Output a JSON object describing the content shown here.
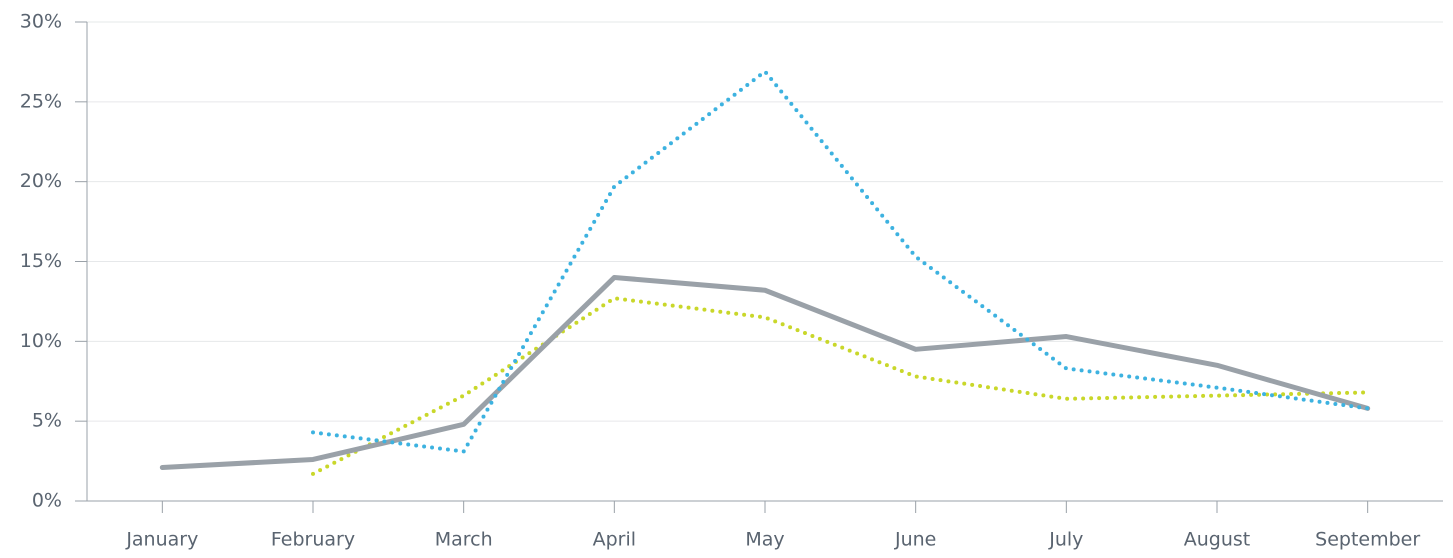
{
  "chart_data": {
    "type": "line",
    "categories": [
      "January",
      "February",
      "March",
      "April",
      "May",
      "June",
      "July",
      "August",
      "September"
    ],
    "series": [
      {
        "color": "#c9d72a",
        "style": "dotted",
        "values": [
          null,
          1.7,
          6.6,
          12.7,
          11.5,
          7.8,
          6.4,
          6.6,
          6.8
        ]
      },
      {
        "color": "#9aa1a8",
        "style": "solid",
        "values": [
          2.1,
          2.6,
          4.8,
          14.0,
          13.2,
          9.5,
          10.3,
          8.5,
          5.8
        ]
      },
      {
        "color": "#3db2e0",
        "style": "dotted",
        "values": [
          null,
          4.3,
          3.1,
          19.7,
          26.9,
          15.3,
          8.3,
          7.1,
          5.8
        ]
      }
    ],
    "ylim": [
      0,
      30
    ],
    "yticks": [
      {
        "value": 0,
        "label": "0%"
      },
      {
        "value": 5,
        "label": "5%"
      },
      {
        "value": 10,
        "label": "10%"
      },
      {
        "value": 15,
        "label": "15%"
      },
      {
        "value": 20,
        "label": "20%"
      },
      {
        "value": 25,
        "label": "25%"
      },
      {
        "value": 30,
        "label": "30%"
      }
    ],
    "grid": true
  }
}
